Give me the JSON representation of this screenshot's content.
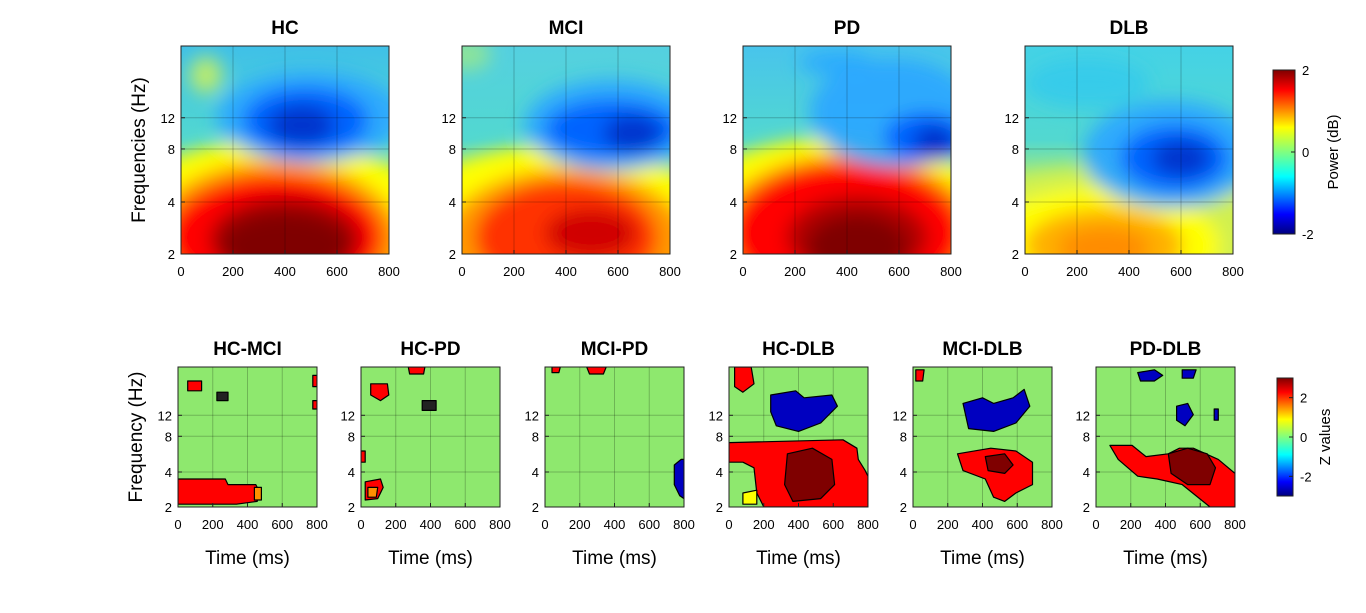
{
  "chart_data": [
    {
      "type": "heatmap",
      "title": "HC",
      "xlabel": "",
      "ylabel": "Frequencies (Hz)",
      "x_ticks": [
        "0",
        "200",
        "400",
        "600",
        "800"
      ],
      "y_ticks": [
        "2",
        "4",
        "8",
        "12"
      ],
      "xlim": [
        0,
        800
      ],
      "ylim": [
        2,
        30
      ],
      "grid": true,
      "regions": [
        {
          "label": "high alpha/beta desynchronization",
          "t_center_ms": 420,
          "f_center_hz": 12,
          "value_db": -1.6
        },
        {
          "label": "delta/theta synchronization",
          "t_center_ms": 420,
          "f_center_hz": 2.5,
          "value_db": 2.0
        }
      ]
    },
    {
      "type": "heatmap",
      "title": "MCI",
      "xlabel": "",
      "ylabel": "",
      "x_ticks": [
        "0",
        "200",
        "400",
        "600",
        "800"
      ],
      "y_ticks": [
        "2",
        "4",
        "8",
        "12"
      ],
      "xlim": [
        0,
        800
      ],
      "ylim": [
        2,
        30
      ],
      "grid": true,
      "regions": [
        {
          "label": "high alpha/beta desynchronization",
          "t_center_ms": 560,
          "f_center_hz": 12,
          "value_db": -1.7
        },
        {
          "label": "delta/theta synchronization",
          "t_center_ms": 450,
          "f_center_hz": 3,
          "value_db": 1.6
        }
      ]
    },
    {
      "type": "heatmap",
      "title": "PD",
      "xlabel": "",
      "ylabel": "",
      "x_ticks": [
        "0",
        "200",
        "400",
        "600",
        "800"
      ],
      "y_ticks": [
        "2",
        "4",
        "8",
        "12"
      ],
      "xlim": [
        0,
        800
      ],
      "ylim": [
        2,
        30
      ],
      "grid": true,
      "regions": [
        {
          "label": "high alpha/beta desynchronization",
          "t_center_ms": 700,
          "f_center_hz": 12,
          "value_db": -1.7
        },
        {
          "label": "delta/theta synchronization",
          "t_center_ms": 480,
          "f_center_hz": 2.5,
          "value_db": 2.0
        }
      ]
    },
    {
      "type": "heatmap",
      "title": "DLB",
      "xlabel": "",
      "ylabel": "",
      "x_ticks": [
        "0",
        "200",
        "400",
        "600",
        "800"
      ],
      "y_ticks": [
        "2",
        "4",
        "8",
        "12"
      ],
      "xlim": [
        0,
        800
      ],
      "ylim": [
        2,
        30
      ],
      "grid": true,
      "regions": [
        {
          "label": "alpha desynchronization",
          "t_center_ms": 640,
          "f_center_hz": 8,
          "value_db": -1.3
        },
        {
          "label": "delta synchronization",
          "t_center_ms": 320,
          "f_center_hz": 2.5,
          "value_db": 1.0
        }
      ]
    },
    {
      "type": "heatmap",
      "title": "HC-MCI",
      "xlabel": "Time (ms)",
      "ylabel": "Frequency (Hz)",
      "x_ticks": [
        "0",
        "200",
        "400",
        "600",
        "800"
      ],
      "y_ticks": [
        "2",
        "4",
        "8",
        "12"
      ],
      "xlim": [
        0,
        800
      ],
      "ylim": [
        2,
        30
      ],
      "regions": [
        {
          "label": "positive cluster",
          "t_range_ms": [
            0,
            450
          ],
          "f_range_hz": [
            2,
            3.3
          ],
          "z": 2.5
        }
      ]
    },
    {
      "type": "heatmap",
      "title": "HC-PD",
      "xlabel": "Time (ms)",
      "ylabel": "",
      "x_ticks": [
        "0",
        "200",
        "400",
        "600",
        "800"
      ],
      "y_ticks": [
        "2",
        "4",
        "8",
        "12"
      ],
      "xlim": [
        0,
        800
      ],
      "ylim": [
        2,
        30
      ],
      "regions": [
        {
          "label": "positive cluster",
          "t_range_ms": [
            0,
            150
          ],
          "f_range_hz": [
            2,
            3.2
          ],
          "z": 2.2
        }
      ]
    },
    {
      "type": "heatmap",
      "title": "MCI-PD",
      "xlabel": "Time (ms)",
      "ylabel": "",
      "x_ticks": [
        "0",
        "200",
        "400",
        "600",
        "800"
      ],
      "y_ticks": [
        "2",
        "4",
        "8",
        "12"
      ],
      "xlim": [
        0,
        800
      ],
      "ylim": [
        2,
        30
      ],
      "regions": [
        {
          "label": "negative cluster",
          "t_range_ms": [
            740,
            800
          ],
          "f_range_hz": [
            2.5,
            4
          ],
          "z": -2.4
        }
      ]
    },
    {
      "type": "heatmap",
      "title": "HC-DLB",
      "xlabel": "Time (ms)",
      "ylabel": "",
      "x_ticks": [
        "0",
        "200",
        "400",
        "600",
        "800"
      ],
      "y_ticks": [
        "2",
        "4",
        "8",
        "12"
      ],
      "xlim": [
        0,
        800
      ],
      "ylim": [
        2,
        30
      ],
      "regions": [
        {
          "label": "positive cluster",
          "t_range_ms": [
            0,
            800
          ],
          "f_range_hz": [
            2,
            6
          ],
          "z": 3.0
        },
        {
          "label": "negative cluster",
          "t_range_ms": [
            250,
            650
          ],
          "f_range_hz": [
            10,
            16
          ],
          "z": -2.5
        }
      ]
    },
    {
      "type": "heatmap",
      "title": "MCI-DLB",
      "xlabel": "Time (ms)",
      "ylabel": "",
      "x_ticks": [
        "0",
        "200",
        "400",
        "600",
        "800"
      ],
      "y_ticks": [
        "2",
        "4",
        "8",
        "12"
      ],
      "xlim": [
        0,
        800
      ],
      "ylim": [
        2,
        30
      ],
      "regions": [
        {
          "label": "positive cluster",
          "t_range_ms": [
            250,
            750
          ],
          "f_range_hz": [
            2.5,
            5
          ],
          "z": 2.8
        },
        {
          "label": "negative cluster",
          "t_range_ms": [
            300,
            700
          ],
          "f_range_hz": [
            10,
            16
          ],
          "z": -2.5
        }
      ]
    },
    {
      "type": "heatmap",
      "title": "PD-DLB",
      "xlabel": "Time (ms)",
      "ylabel": "",
      "x_ticks": [
        "0",
        "200",
        "400",
        "600",
        "800"
      ],
      "y_ticks": [
        "2",
        "4",
        "8",
        "12"
      ],
      "xlim": [
        0,
        800
      ],
      "ylim": [
        2,
        30
      ],
      "regions": [
        {
          "label": "positive cluster",
          "t_range_ms": [
            100,
            800
          ],
          "f_range_hz": [
            2,
            6
          ],
          "z": 3.0
        },
        {
          "label": "negative cluster",
          "t_range_ms": [
            450,
            600
          ],
          "f_range_hz": [
            10,
            13
          ],
          "z": -2.3
        }
      ]
    }
  ],
  "colorbars": [
    {
      "label": "Power (dB)",
      "ticks": [
        "2",
        "0",
        "-2"
      ],
      "range": [
        -2,
        2
      ]
    },
    {
      "label": "Z values",
      "ticks": [
        "2",
        "0",
        "-2"
      ],
      "range": [
        -3,
        3
      ]
    }
  ],
  "colors": {
    "jet_dark_red": "#7f0000",
    "jet_red": "#ff0000",
    "jet_yellow": "#ffff00",
    "jet_cyan": "#00ffff",
    "jet_blue": "#0000ff",
    "jet_dark_blue": "#00007f",
    "nonsignificant_green": "#8ee86e"
  }
}
